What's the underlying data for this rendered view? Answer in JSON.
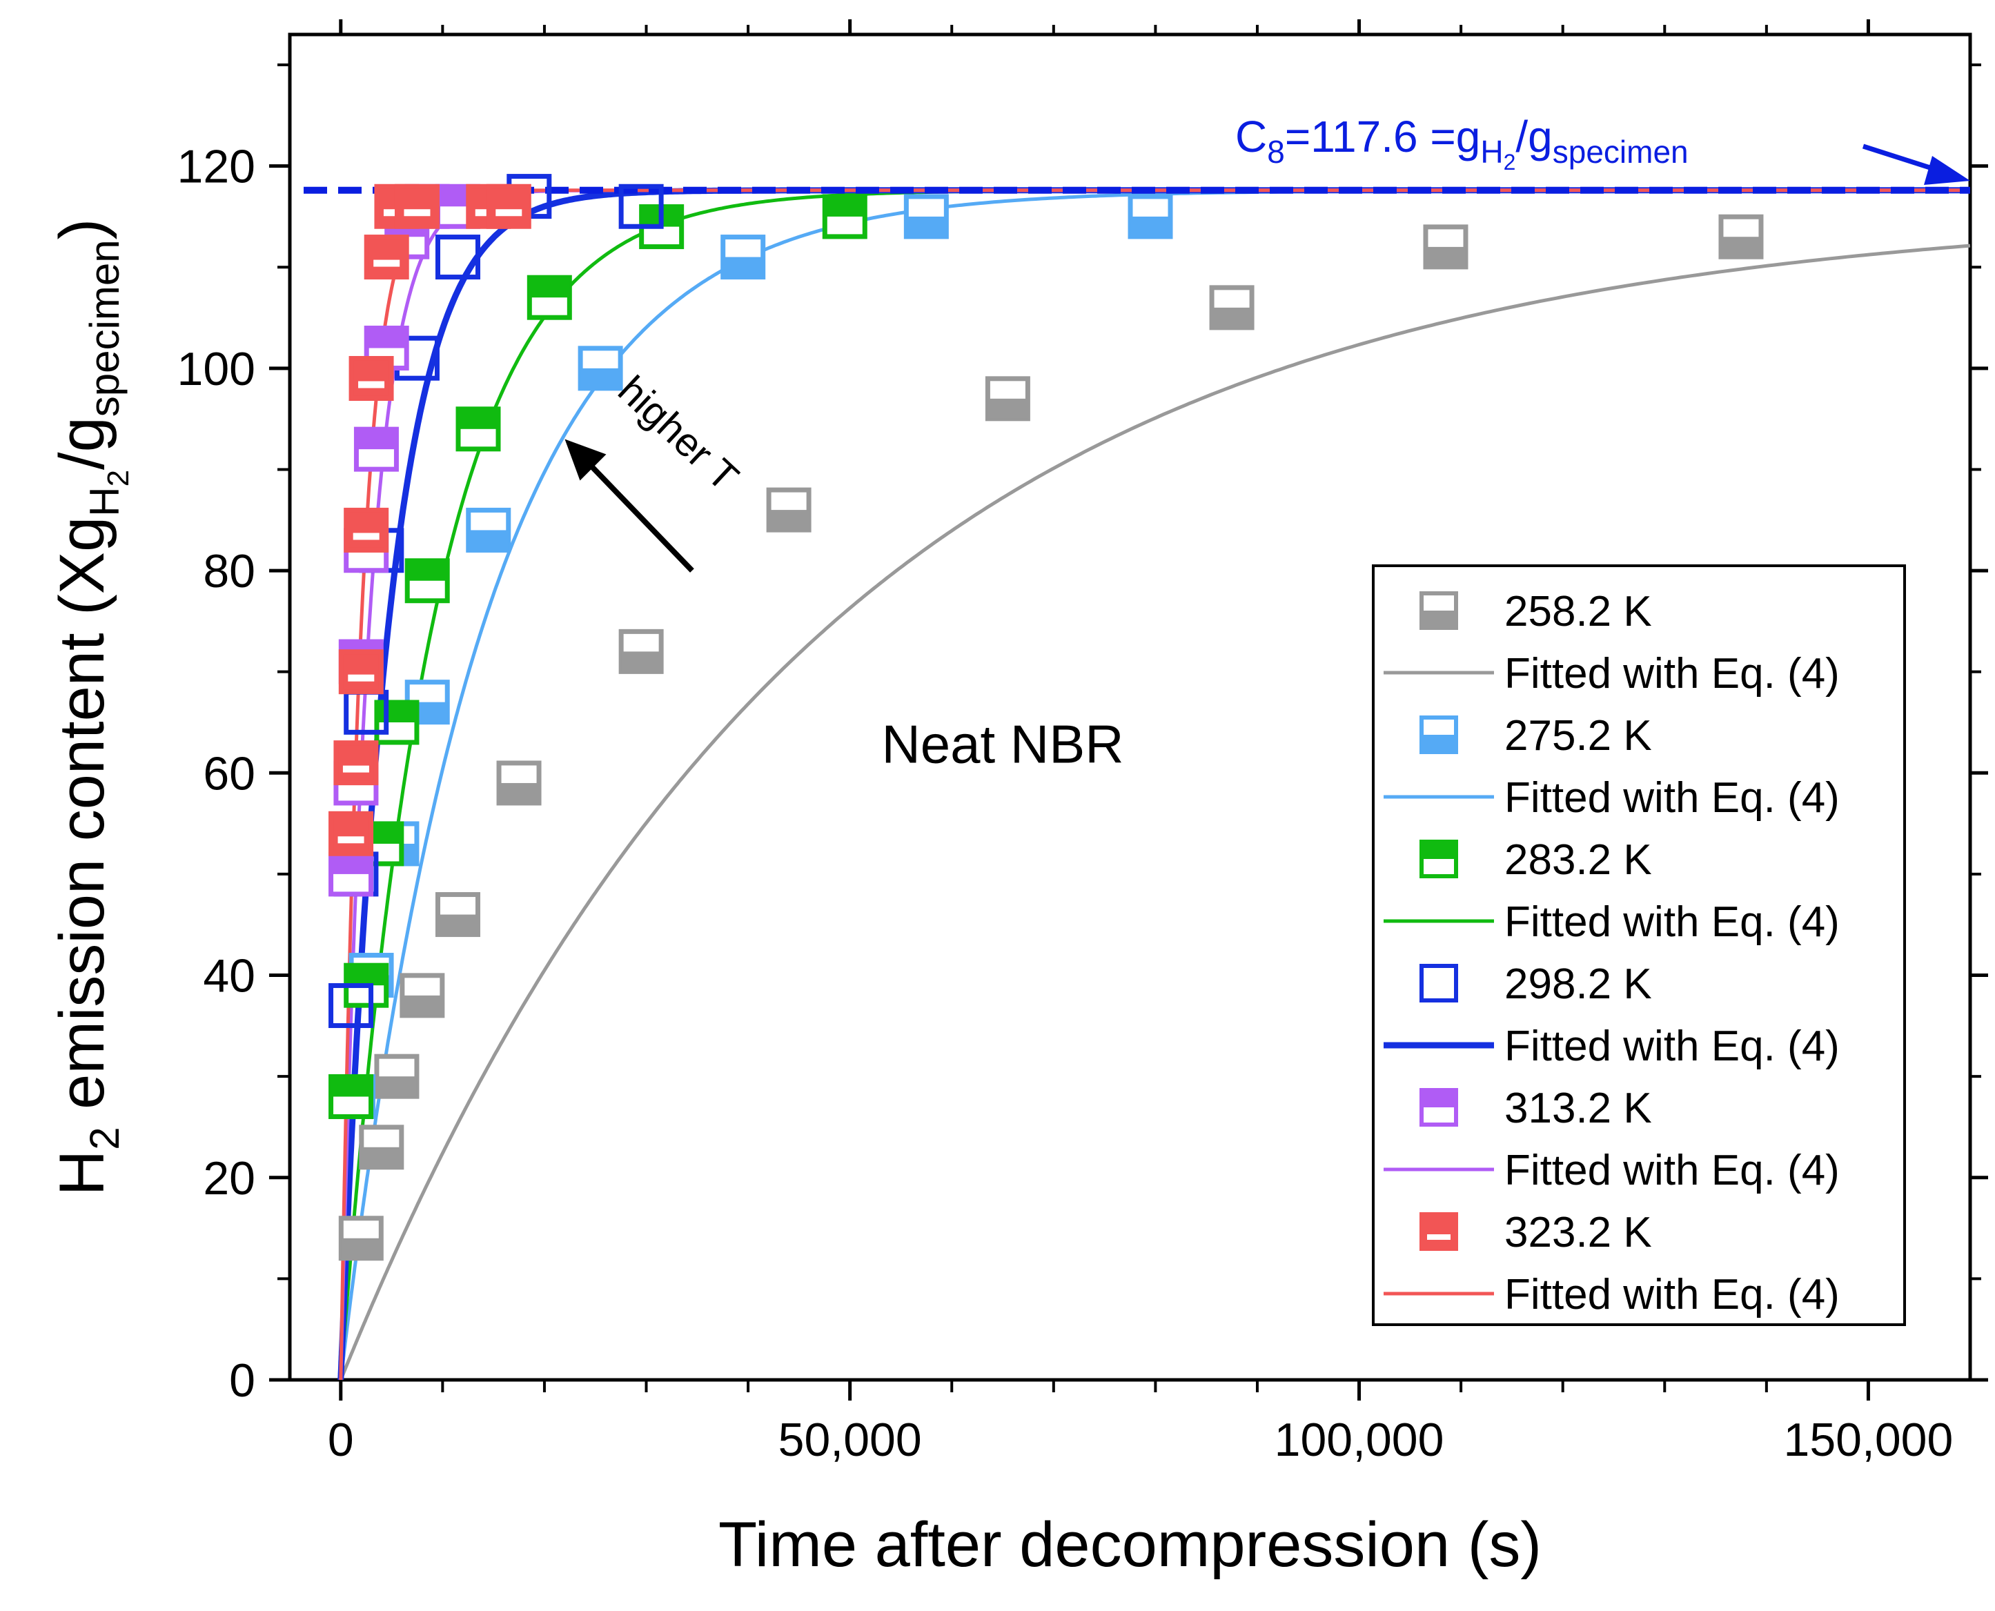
{
  "chart_data": {
    "type": "scatter",
    "xlabel": "Time after decompression (s)",
    "ylabel": {
      "main": "H",
      "sub": "2",
      "rest": " emission content (Xg",
      "sub2": "H",
      "sub2b": "2",
      "rest2": "/g",
      "sub3": "specimen",
      "close": ")"
    },
    "xlim": [
      -5000,
      160000
    ],
    "ylim": [
      0,
      133
    ],
    "x_ticks": [
      0,
      50000,
      100000,
      150000
    ],
    "x_tick_labels": [
      "0",
      "50,000",
      "100,000",
      "150,000"
    ],
    "y_ticks": [
      0,
      20,
      40,
      60,
      80,
      100,
      120
    ],
    "y_tick_labels": [
      "0",
      "20",
      "40",
      "60",
      "80",
      "100",
      "120"
    ],
    "grid": false,
    "legend_position": "right",
    "annotations": {
      "center_label": "Neat NBR",
      "arrow_label": "higher T",
      "cinf": {
        "prefix": "C",
        "sub": "8",
        "eq": "=117.6 =g",
        "sub2": "H",
        "sub2b": "2",
        "slash": "/g",
        "sub3": "specimen",
        "value": 117.6
      }
    },
    "series": [
      {
        "name": "258.2 K",
        "fit_name": "Fitted with Eq. (4)",
        "color": "#999999",
        "marker": "half-top",
        "x": [
          2000,
          4000,
          5500,
          8000,
          11500,
          17500,
          29500,
          44000,
          65500,
          87500,
          108500,
          137500
        ],
        "y": [
          14,
          23,
          30,
          38,
          46,
          59,
          72,
          86,
          97,
          106,
          112,
          113
        ],
        "fit_k": 2.15e-05
      },
      {
        "name": "275.2 K",
        "fit_name": "Fitted with Eq. (4)",
        "color": "#55aaf5",
        "marker": "half-top",
        "x": [
          1200,
          3000,
          5500,
          8500,
          14500,
          25500,
          39500,
          57500,
          79500
        ],
        "y": [
          28,
          40,
          53,
          67,
          84,
          100,
          111,
          115,
          115
        ],
        "fit_k": 7.2e-05
      },
      {
        "name": "283.2 K",
        "fit_name": "Fitted with Eq. (4)",
        "color": "#10bb10",
        "marker": "half-bottom",
        "x": [
          1000,
          2500,
          4000,
          5500,
          8500,
          13500,
          20500,
          31500,
          49500
        ],
        "y": [
          28,
          39,
          53,
          65,
          79,
          94,
          107,
          114,
          115
        ],
        "fit_k": 0.000112
      },
      {
        "name": "298.2 K",
        "fit_name": "Fitted with Eq. (4)",
        "color": "#1530e0",
        "marker": "hollow",
        "x": [
          1000,
          1500,
          2500,
          4000,
          7500,
          11500,
          18500,
          29500
        ],
        "y": [
          37,
          50,
          66,
          82,
          101,
          111,
          117,
          116
        ],
        "fit_k": 0.000215
      },
      {
        "name": "313.2 K",
        "fit_name": "Fitted with Eq. (4)",
        "color": "#b05cf5",
        "marker": "half-bottom",
        "x": [
          1000,
          1500,
          2000,
          2500,
          3500,
          4500,
          6500,
          8500,
          11500
        ],
        "y": [
          50,
          59,
          71,
          82,
          92,
          102,
          113,
          116,
          116
        ],
        "fit_k": 0.00036
      },
      {
        "name": "323.2 K",
        "fit_name": "Fitted with Eq. (4)",
        "color": "#f25555",
        "marker": "split",
        "x": [
          1000,
          1500,
          2000,
          2500,
          3000,
          4500,
          5500,
          7500,
          14500,
          16500
        ],
        "y": [
          54,
          61,
          70,
          84,
          99,
          111,
          116,
          116,
          116,
          116
        ],
        "fit_k": 0.0005
      }
    ]
  }
}
